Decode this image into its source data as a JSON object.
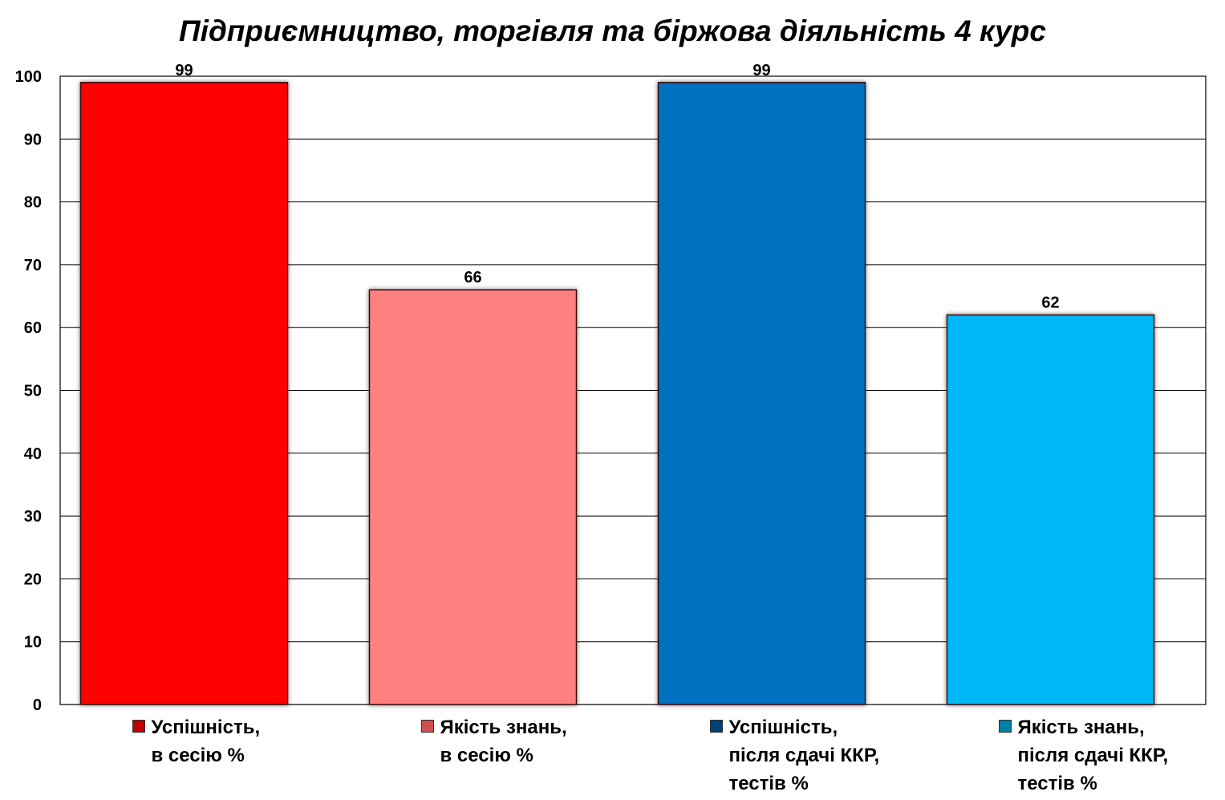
{
  "chart_data": {
    "type": "bar",
    "title": "Підприємництво, торгівля та біржова діяльність 4 курс",
    "xlabel": "",
    "ylabel": "",
    "ylim": [
      0,
      100
    ],
    "yticks": [
      "0",
      "10",
      "20",
      "30",
      "40",
      "50",
      "60",
      "70",
      "80",
      "90",
      "100"
    ],
    "grid": true,
    "legend_position": "bottom",
    "categories": [
      "Успішність,\nв сесію %",
      "Якість знань,\nв сесію %",
      "Успішність,\nпісля сдачі ККР,\nтестів %",
      "Якість знань,\nпісля сдачі ККР,\nтестів %"
    ],
    "values": [
      99,
      66,
      99,
      62
    ],
    "data_labels": [
      "99",
      "66",
      "99",
      "62"
    ],
    "colors": [
      "#ff0000",
      "#ff8080",
      "#0070c0",
      "#00b8f5"
    ],
    "legend_swatch_colors": [
      "#c00000",
      "#d05050",
      "#00407a",
      "#0080a8"
    ]
  }
}
